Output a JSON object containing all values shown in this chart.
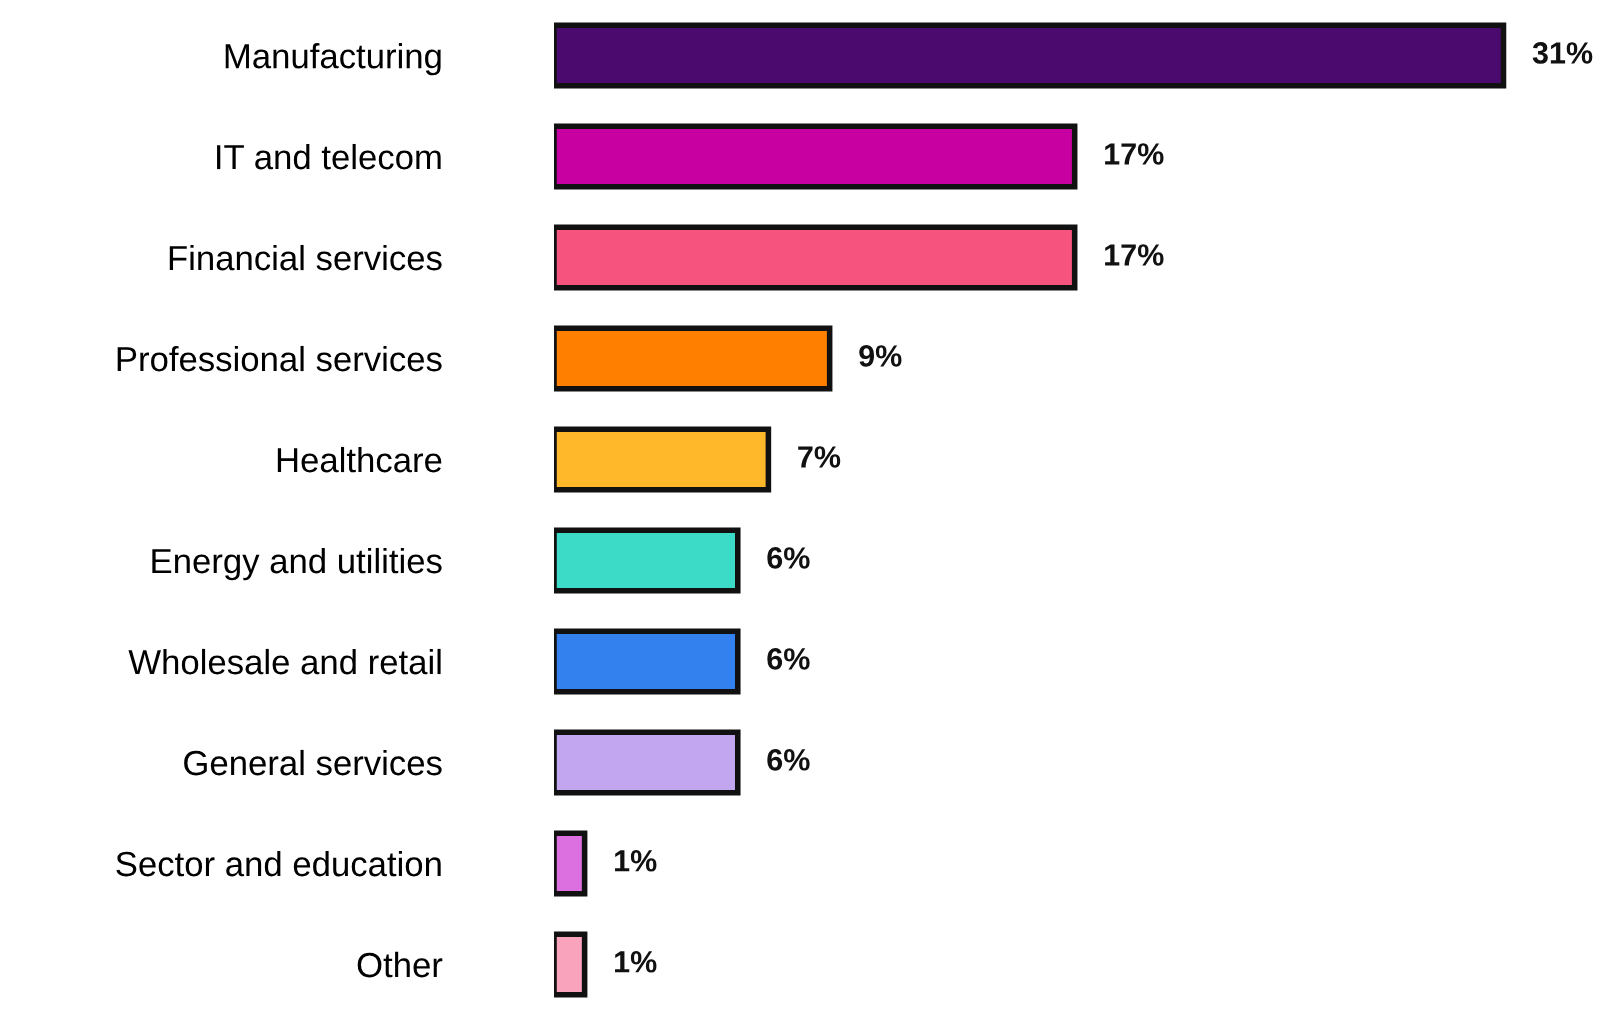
{
  "chart_data": {
    "type": "bar",
    "orientation": "horizontal",
    "categories": [
      "Manufacturing",
      "IT and telecom",
      "Financial services",
      "Professional services",
      "Healthcare",
      "Energy and utilities",
      "Wholesale and retail",
      "General services",
      "Sector and education",
      "Other"
    ],
    "values": [
      31,
      17,
      17,
      9,
      7,
      6,
      6,
      6,
      1,
      1
    ],
    "colors": [
      "#4b0a6e",
      "#c800a1",
      "#f7537f",
      "#ff8000",
      "#ffb829",
      "#3cdbc8",
      "#3381ef",
      "#c2a6ef",
      "#dd70e0",
      "#f9a3bd"
    ],
    "value_labels": [
      "31%",
      "17%",
      "17%",
      "9%",
      "7%",
      "6%",
      "6%",
      "6%",
      "1%",
      "1%"
    ],
    "grid": false
  }
}
